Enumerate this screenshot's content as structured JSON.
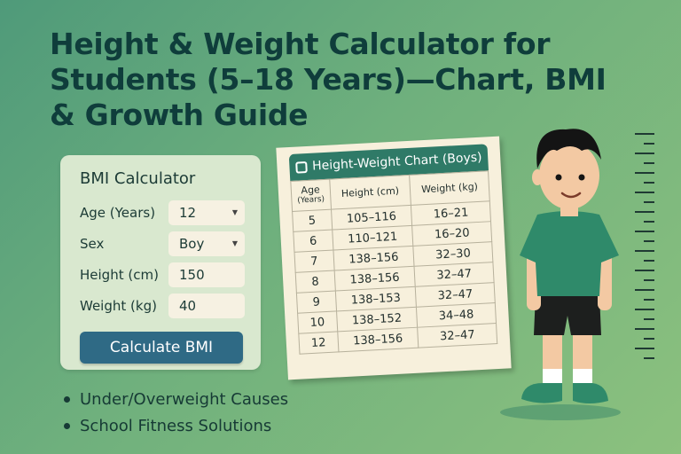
{
  "title_lines": [
    "Height & Weight Calculator for",
    "Students (5–18 Years)—Chart, BMI",
    "& Growth Guide"
  ],
  "calculator": {
    "title": "BMI Calculator",
    "age_label": "Age (Years)",
    "age_value": "12",
    "sex_label": "Sex",
    "sex_value": "Boy",
    "height_label": "Height (cm)",
    "height_value": "150",
    "weight_label": "Weight (kg)",
    "weight_value": "40",
    "button_label": "Calculate BMI"
  },
  "chart": {
    "title": "Height-Weight Chart (Boys)",
    "col_age": "Age",
    "col_age_sub": "(Years)",
    "col_height": "Height (cm)",
    "col_weight": "Weight (kg)",
    "rows": [
      [
        "5",
        "105–116",
        "16–21"
      ],
      [
        "6",
        "110–121",
        "16–20"
      ],
      [
        "7",
        "138–156",
        "32–30"
      ],
      [
        "8",
        "138–156",
        "32–47"
      ],
      [
        "9",
        "138–153",
        "32–47"
      ],
      [
        "10",
        "138–152",
        "34–48"
      ],
      [
        "12",
        "138–156",
        "32–47"
      ]
    ]
  },
  "bullets": [
    "Under/Overweight Causes",
    "School Fitness Solutions"
  ],
  "colors": {
    "title": "#0f3d3b",
    "button": "#2f6a85",
    "chart_header": "#2f7a67",
    "shirt": "#2f8a6a"
  },
  "illustration": "boy-standing-next-to-height-ruler"
}
